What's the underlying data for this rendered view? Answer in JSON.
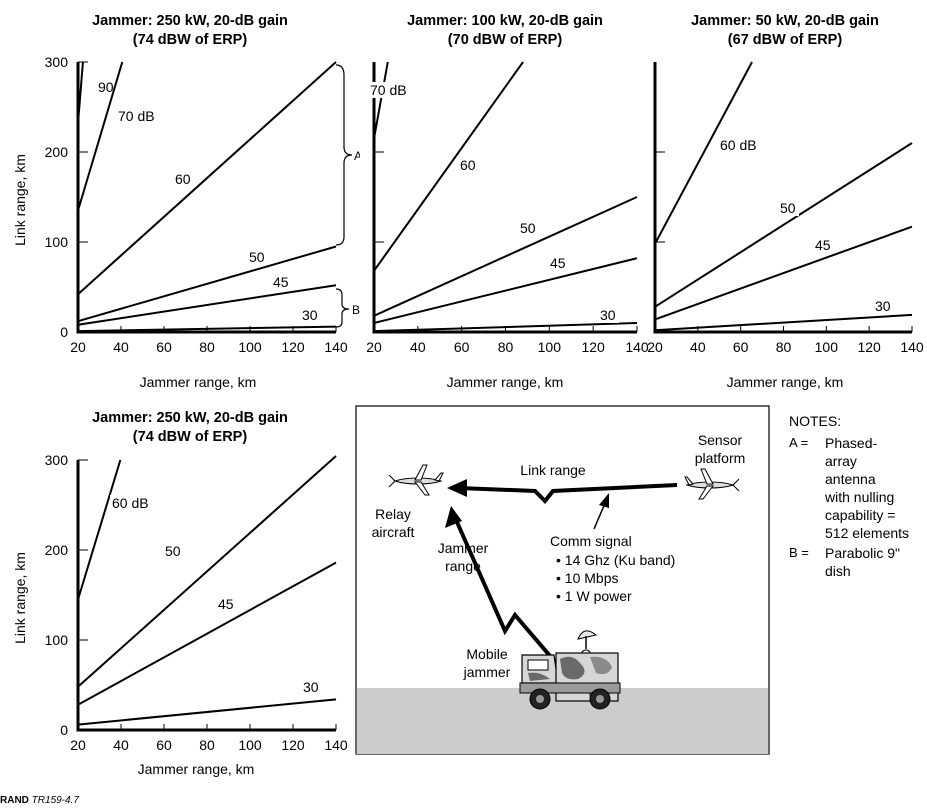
{
  "chart_data": [
    {
      "type": "line",
      "title_line1": "Jammer: 250 kW, 20-dB gain",
      "title_line2": "(74 dBW of ERP)",
      "xlabel": "Jammer range, km",
      "ylabel": "Link range, km",
      "xlim": [
        20,
        140
      ],
      "ylim": [
        0,
        300
      ],
      "xticks": [
        "20",
        "40",
        "60",
        "80",
        "100",
        "120",
        "140"
      ],
      "yticks": [
        "0",
        "100",
        "200",
        "300"
      ],
      "series": [
        {
          "name": "90",
          "x": [
            20,
            22.3
          ],
          "y": [
            232,
            300
          ]
        },
        {
          "name": "70 dB",
          "x": [
            20,
            40.6
          ],
          "y": [
            135,
            300
          ]
        },
        {
          "name": "60",
          "x": [
            20,
            140
          ],
          "y": [
            42,
            300
          ]
        },
        {
          "name": "50",
          "x": [
            20,
            140
          ],
          "y": [
            12,
            95
          ]
        },
        {
          "name": "45",
          "x": [
            20,
            140
          ],
          "y": [
            8,
            52
          ]
        },
        {
          "name": "30",
          "x": [
            20,
            140
          ],
          "y": [
            1,
            6
          ]
        }
      ],
      "annotations": [
        "A",
        "B"
      ]
    },
    {
      "type": "line",
      "title_line1": "Jammer: 100 kW, 20-dB gain",
      "title_line2": "(70 dBW of ERP)",
      "xlabel": "Jammer range, km",
      "xlim": [
        20,
        140
      ],
      "ylim": [
        0,
        300
      ],
      "xticks": [
        "20",
        "40",
        "60",
        "80",
        "100",
        "120",
        "140"
      ],
      "series": [
        {
          "name": "70 dB",
          "x": [
            20,
            26.3
          ],
          "y": [
            215,
            300
          ]
        },
        {
          "name": "60",
          "x": [
            20,
            88
          ],
          "y": [
            68,
            300
          ]
        },
        {
          "name": "50",
          "x": [
            20,
            140
          ],
          "y": [
            18,
            150
          ]
        },
        {
          "name": "45",
          "x": [
            20,
            140
          ],
          "y": [
            10,
            82
          ]
        },
        {
          "name": "30",
          "x": [
            20,
            140
          ],
          "y": [
            1,
            10
          ]
        }
      ]
    },
    {
      "type": "line",
      "title_line1": "Jammer: 50 kW, 20-dB gain",
      "title_line2": "(67 dBW of ERP)",
      "xlabel": "Jammer range, km",
      "xlim": [
        20,
        140
      ],
      "ylim": [
        0,
        300
      ],
      "xticks": [
        "20",
        "40",
        "60",
        "80",
        "100",
        "120",
        "140"
      ],
      "series": [
        {
          "name": "60 dB",
          "x": [
            20,
            65.3
          ],
          "y": [
            98,
            300
          ]
        },
        {
          "name": "50",
          "x": [
            20,
            140
          ],
          "y": [
            28,
            210
          ]
        },
        {
          "name": "45",
          "x": [
            20,
            140
          ],
          "y": [
            14,
            117
          ]
        },
        {
          "name": "30",
          "x": [
            20,
            140
          ],
          "y": [
            2,
            19
          ]
        }
      ]
    },
    {
      "type": "line",
      "title_line1": "Jammer: 250 kW, 20-dB gain",
      "title_line2": "(74 dBW of ERP)",
      "xlabel": "Jammer range, km",
      "ylabel": "Link range, km",
      "xlim": [
        20,
        140
      ],
      "ylim": [
        0,
        300
      ],
      "xticks": [
        "20",
        "40",
        "60",
        "80",
        "100",
        "120",
        "140"
      ],
      "yticks": [
        "0",
        "100",
        "200",
        "300"
      ],
      "series": [
        {
          "name": "60 dB",
          "x": [
            20,
            39.7
          ],
          "y": [
            145,
            300
          ]
        },
        {
          "name": "50",
          "x": [
            20,
            140
          ],
          "y": [
            48,
            305
          ]
        },
        {
          "name": "45",
          "x": [
            20,
            140
          ],
          "y": [
            28,
            186
          ]
        },
        {
          "name": "30",
          "x": [
            20,
            140
          ],
          "y": [
            6,
            34
          ]
        }
      ]
    }
  ],
  "diagram": {
    "sensor_platform": [
      "Sensor",
      "platform"
    ],
    "link_range": "Link range",
    "relay_aircraft": [
      "Relay",
      "aircraft"
    ],
    "comm_signal_title": "Comm signal",
    "comm_signal_items": [
      "• 14 Ghz (Ku band)",
      "• 10 Mbps",
      "• 1 W power"
    ],
    "jammer_range": [
      "Jammer",
      "range"
    ],
    "mobile_jammer": [
      "Mobile",
      "jammer"
    ]
  },
  "notes": {
    "heading": "NOTES:",
    "a_key": "A =",
    "a_text": [
      "Phased-",
      "array",
      "antenna",
      "with nulling",
      "capability =",
      "512 elements"
    ],
    "b_key": "B =",
    "b_text": [
      "Parabolic 9\"",
      "dish"
    ]
  },
  "footer": {
    "publisher": "RAND",
    "report_id": "TR159-4.7"
  },
  "colors": {
    "ground": "#cccccc",
    "line": "#000000",
    "camo_light": "#d6d6d6",
    "camo_dark": "#6a6a6a"
  }
}
